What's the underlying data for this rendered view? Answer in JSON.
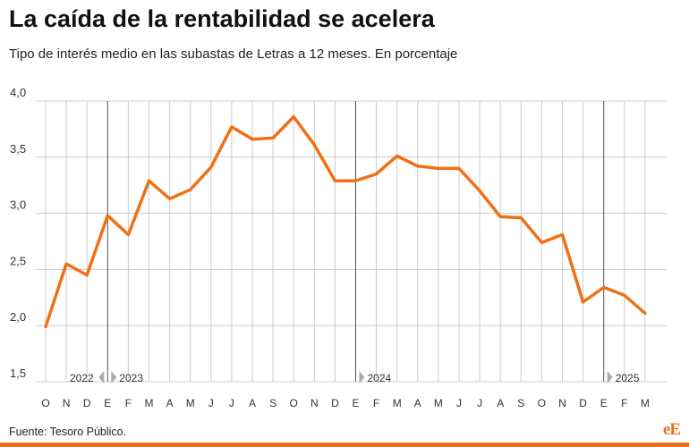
{
  "header": {
    "title": "La caída de la rentabilidad se acelera",
    "subtitle": "Tipo de interés medio en las subastas de Letras a 12 meses. En porcentaje"
  },
  "footer": {
    "source": "Fuente: Tesoro Público.",
    "logo_text": "eE"
  },
  "colors": {
    "line": "#f07015",
    "grid": "#cccccc",
    "year_separator": "#555555",
    "marker": "#aaaaaa",
    "brand": "#e8701a"
  },
  "chart_data": {
    "type": "line",
    "title": "La caída de la rentabilidad se acelera",
    "subtitle": "Tipo de interés medio en las subastas de Letras a 12 meses. En porcentaje",
    "xlabel": "",
    "ylabel": "",
    "categories": [
      "O",
      "N",
      "D",
      "E",
      "F",
      "M",
      "A",
      "M",
      "J",
      "J",
      "A",
      "S",
      "O",
      "N",
      "D",
      "E",
      "F",
      "M",
      "A",
      "M",
      "J",
      "J",
      "A",
      "S",
      "O",
      "N",
      "D",
      "E",
      "F",
      "M"
    ],
    "years": [
      {
        "label": "2022",
        "start_index": 0
      },
      {
        "label": "2023",
        "start_index": 3
      },
      {
        "label": "2024",
        "start_index": 15
      },
      {
        "label": "2025",
        "start_index": 27
      }
    ],
    "series": [
      {
        "values": [
          1.99,
          2.55,
          2.45,
          2.98,
          2.81,
          3.29,
          3.13,
          3.21,
          3.41,
          3.77,
          3.66,
          3.67,
          3.86,
          3.61,
          3.29,
          3.29,
          3.35,
          3.51,
          3.42,
          3.4,
          3.4,
          3.2,
          2.97,
          2.96,
          2.74,
          2.81,
          2.21,
          2.34,
          2.27,
          2.11
        ]
      }
    ],
    "ylim": [
      1.5,
      4.0
    ],
    "yticks": [
      "1,5",
      "2,0",
      "2,5",
      "3,0",
      "3,5",
      "4,0"
    ],
    "grid": true,
    "legend": "none"
  }
}
